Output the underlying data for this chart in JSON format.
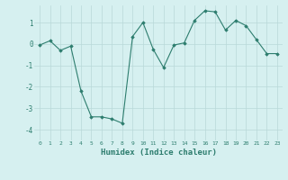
{
  "x": [
    0,
    1,
    2,
    3,
    4,
    5,
    6,
    7,
    8,
    9,
    10,
    11,
    12,
    13,
    14,
    15,
    16,
    17,
    18,
    19,
    20,
    21,
    22,
    23
  ],
  "y": [
    -0.05,
    0.15,
    -0.3,
    -0.1,
    -2.2,
    -3.4,
    -3.4,
    -3.5,
    -3.7,
    0.35,
    1.0,
    -0.25,
    -1.1,
    -0.05,
    0.05,
    1.1,
    1.55,
    1.5,
    0.65,
    1.1,
    0.85,
    0.2,
    -0.45,
    -0.45
  ],
  "line_color": "#2d7d6e",
  "marker": "D",
  "markersize": 1.8,
  "linewidth": 0.8,
  "xlabel": "Humidex (Indice chaleur)",
  "xlabel_fontsize": 6.5,
  "bg_color": "#d6f0f0",
  "grid_color": "#b8d8d8",
  "tick_color": "#2d7d6e",
  "xlim": [
    -0.5,
    23.5
  ],
  "ylim": [
    -4.5,
    1.8
  ],
  "yticks": [
    -4,
    -3,
    -2,
    -1,
    0,
    1
  ],
  "xticks": [
    0,
    1,
    2,
    3,
    4,
    5,
    6,
    7,
    8,
    9,
    10,
    11,
    12,
    13,
    14,
    15,
    16,
    17,
    18,
    19,
    20,
    21,
    22,
    23
  ],
  "xtick_labels": [
    "0",
    "1",
    "2",
    "3",
    "4",
    "5",
    "6",
    "7",
    "8",
    "9",
    "10",
    "11",
    "12",
    "13",
    "14",
    "15",
    "16",
    "17",
    "18",
    "19",
    "20",
    "21",
    "22",
    "23"
  ],
  "xtick_fontsize": 4.5,
  "ytick_fontsize": 5.5
}
